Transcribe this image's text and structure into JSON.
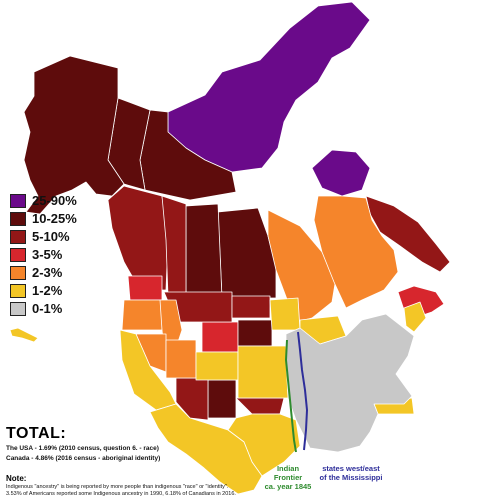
{
  "legend": [
    {
      "label": "25-90%",
      "color": "#6a0a8a"
    },
    {
      "label": "10-25%",
      "color": "#5e0c0c"
    },
    {
      "label": "5-10%",
      "color": "#931717"
    },
    {
      "label": "3-5%",
      "color": "#d7262d"
    },
    {
      "label": "2-3%",
      "color": "#f5852b"
    },
    {
      "label": "1-2%",
      "color": "#f3c626"
    },
    {
      "label": "0-1%",
      "color": "#c8c8c8"
    }
  ],
  "total": {
    "title": "TOTAL:",
    "usa": "The USA - 1.69% (2010 census, question 6. - race)",
    "canada": "Canada - 4.86% (2016 census - aboriginal identity)"
  },
  "note": {
    "title": "Note:",
    "line1": "Indigenous \"ancestry\" is being reported by more people than indigenous \"race\" or \"identity\".",
    "line2": "3.53% of Americans reported some Indigenous ancestry in 1990, 6.18% of Canadians in 2016."
  },
  "frontier": {
    "line1": "Indian Frontier",
    "line2": "ca. year 1845",
    "color": "#2e8b2e"
  },
  "river": {
    "line1": "states west/east",
    "line2": "of the Mississippi",
    "color": "#2e2e9a"
  },
  "regions": [
    {
      "name": "nunavut",
      "category": "25-90%"
    },
    {
      "name": "nunavik",
      "category": "25-90%"
    },
    {
      "name": "northwest-territories",
      "category": "10-25%"
    },
    {
      "name": "yukon",
      "category": "10-25%"
    },
    {
      "name": "alaska",
      "category": "10-25%"
    },
    {
      "name": "manitoba",
      "category": "10-25%"
    },
    {
      "name": "saskatchewan",
      "category": "10-25%"
    },
    {
      "name": "newfoundland-labrador",
      "category": "5-10%"
    },
    {
      "name": "british-columbia",
      "category": "5-10%"
    },
    {
      "name": "alberta",
      "category": "5-10%"
    },
    {
      "name": "ontario",
      "category": "2-3%"
    },
    {
      "name": "quebec-south",
      "category": "2-3%"
    },
    {
      "name": "maritimes",
      "category": "3-5%"
    },
    {
      "name": "washington",
      "category": "3-5%"
    },
    {
      "name": "wyoming",
      "category": "3-5%"
    },
    {
      "name": "montana",
      "category": "5-10%"
    },
    {
      "name": "north-dakota",
      "category": "5-10%"
    },
    {
      "name": "south-dakota",
      "category": "10-25%"
    },
    {
      "name": "new-mexico",
      "category": "10-25%"
    },
    {
      "name": "arizona",
      "category": "5-10%"
    },
    {
      "name": "oklahoma",
      "category": "5-10%"
    },
    {
      "name": "oregon",
      "category": "2-3%"
    },
    {
      "name": "idaho",
      "category": "2-3%"
    },
    {
      "name": "nevada",
      "category": "2-3%"
    },
    {
      "name": "utah",
      "category": "2-3%"
    },
    {
      "name": "colorado",
      "category": "1-2%"
    },
    {
      "name": "nebraska-kansas",
      "category": "1-2%"
    },
    {
      "name": "california",
      "category": "1-2%"
    },
    {
      "name": "texas",
      "category": "1-2%"
    },
    {
      "name": "mexico",
      "category": "1-2%"
    },
    {
      "name": "minnesota",
      "category": "1-2%"
    },
    {
      "name": "wisconsin-michigan",
      "category": "1-2%"
    },
    {
      "name": "north-carolina",
      "category": "1-2%"
    },
    {
      "name": "maine",
      "category": "1-2%"
    },
    {
      "name": "east-usa",
      "category": "0-1%"
    },
    {
      "name": "hawaii",
      "category": "1-2%"
    }
  ]
}
